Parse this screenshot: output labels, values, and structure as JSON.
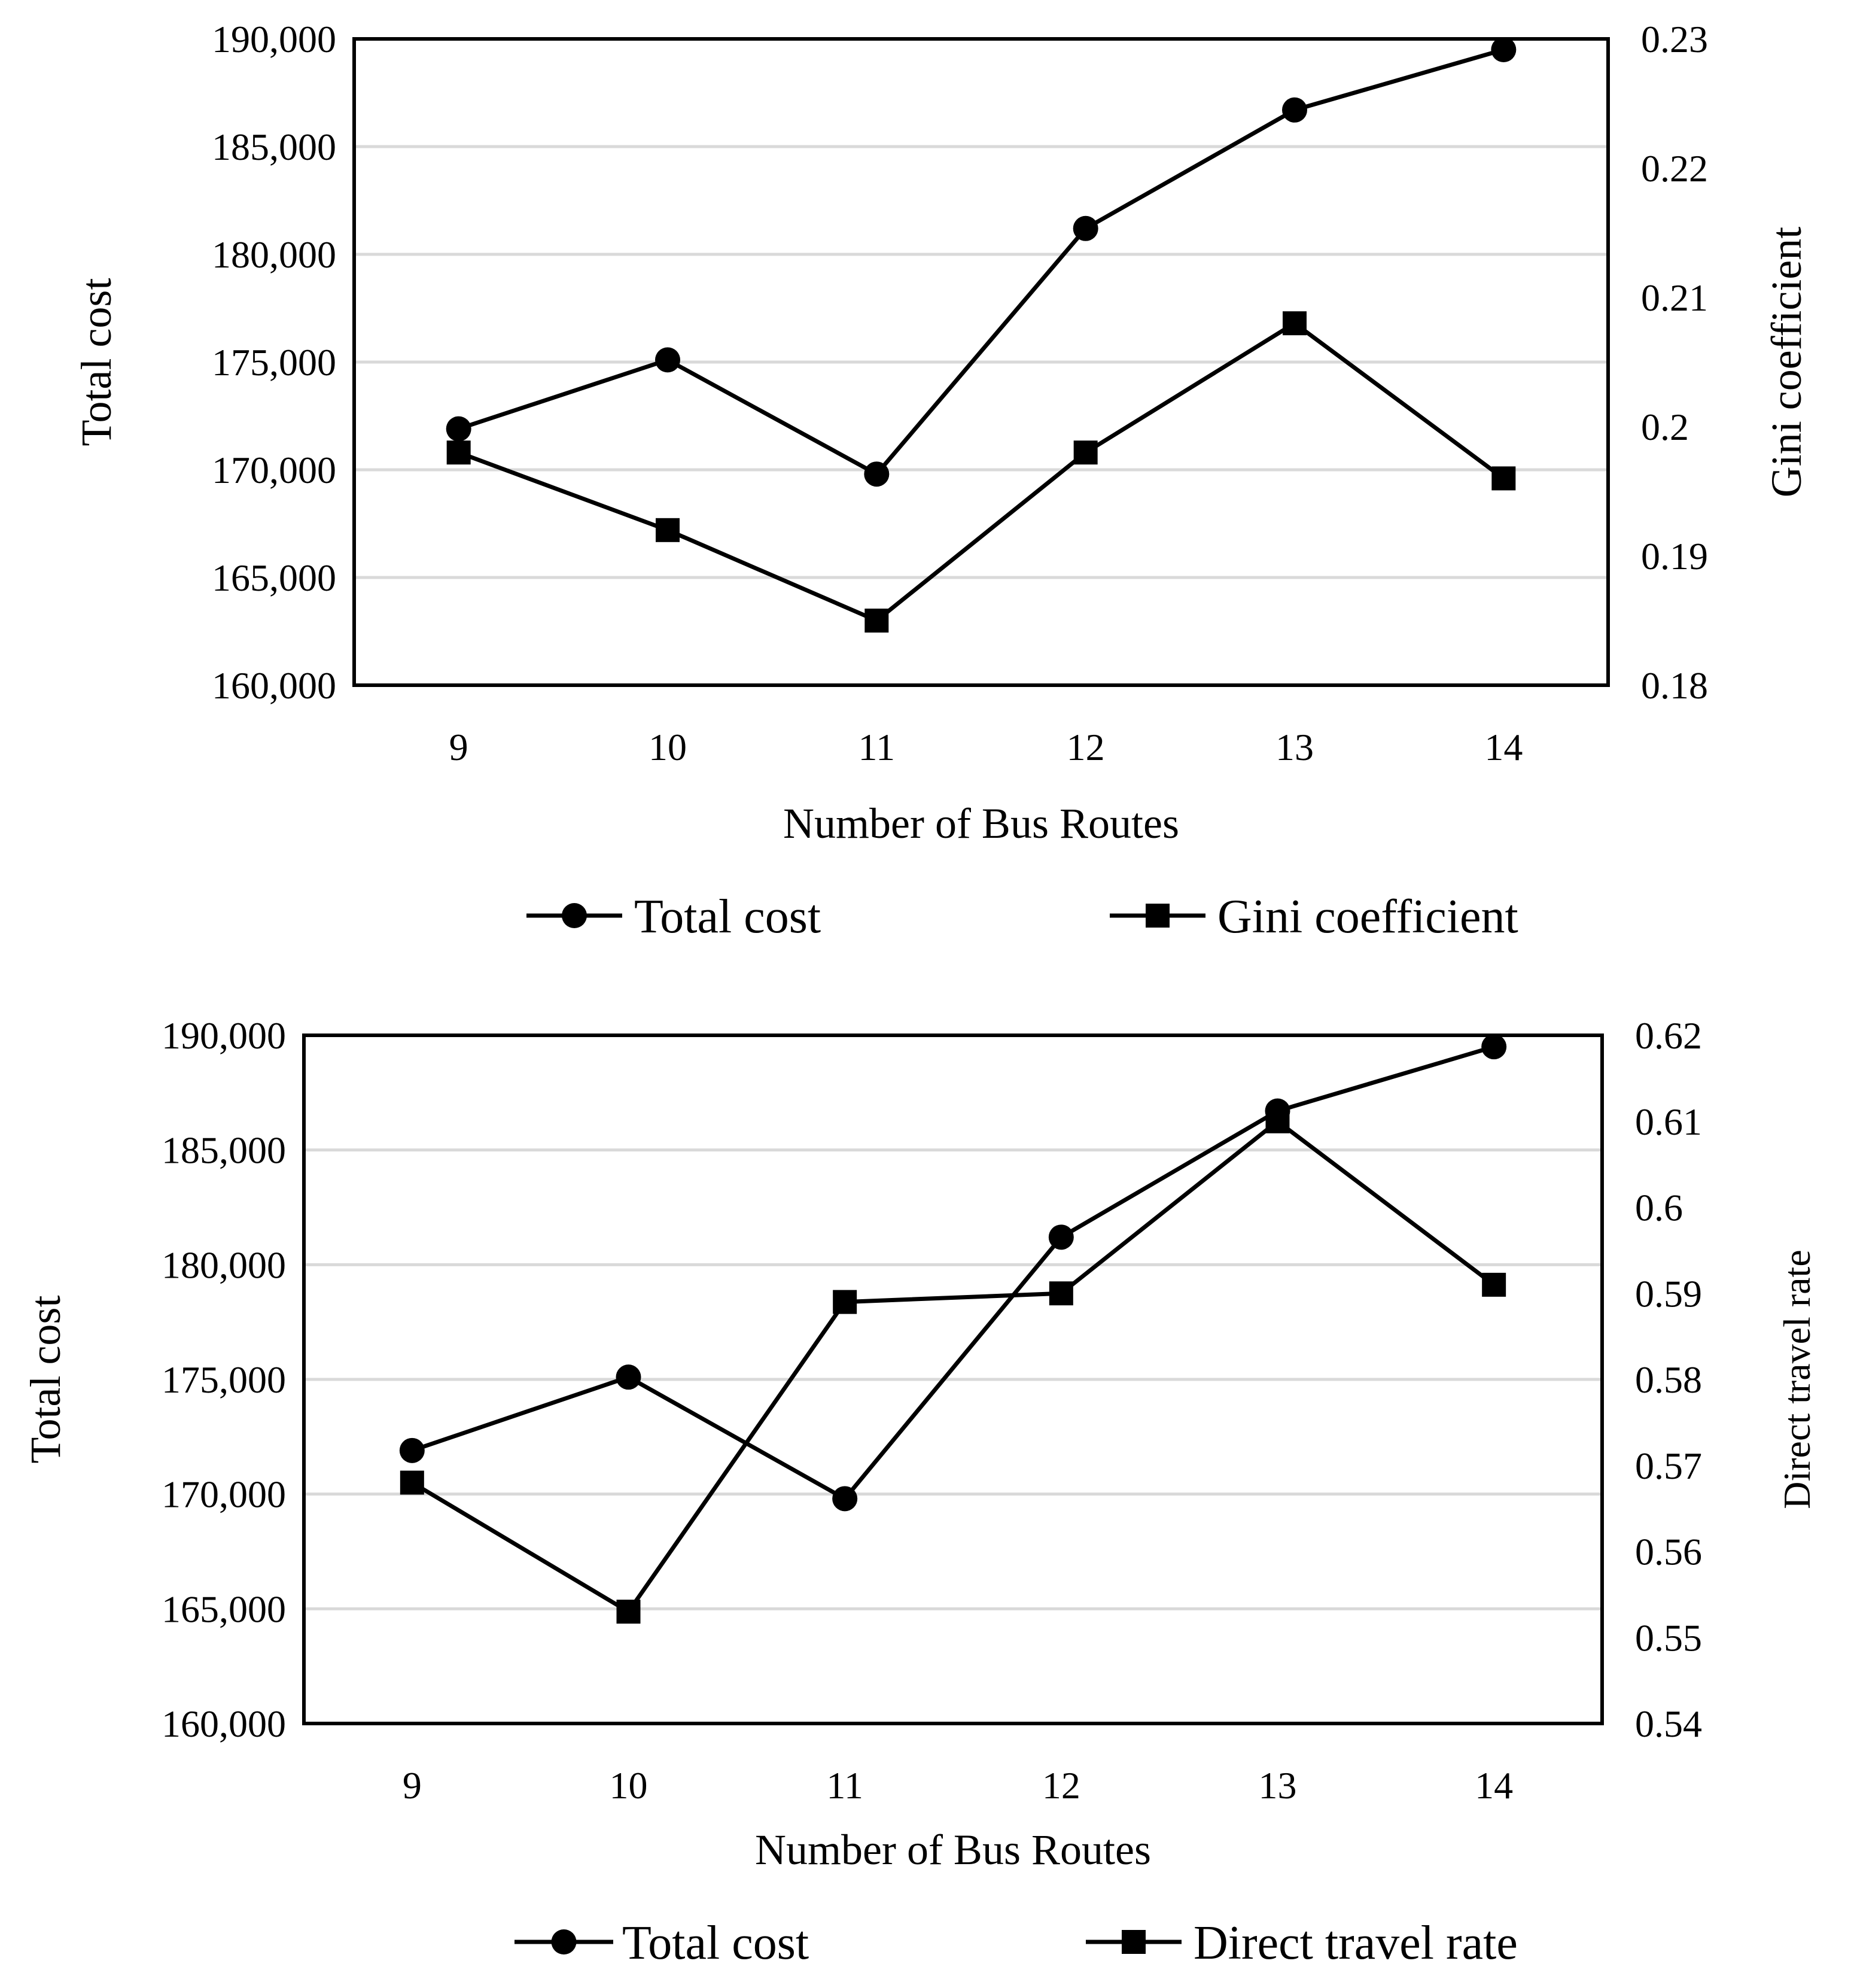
{
  "chart_data": [
    {
      "type": "line",
      "categories": [
        "9",
        "10",
        "11",
        "12",
        "13",
        "14"
      ],
      "xlabel": "Number of Bus Routes",
      "ylabel": "Total cost",
      "y2label": "Gini coefficient",
      "ylim": [
        160000,
        190000
      ],
      "y2lim": [
        0.18,
        0.23
      ],
      "yticks": [
        "160,000",
        "165,000",
        "170,000",
        "175,000",
        "180,000",
        "185,000",
        "190,000"
      ],
      "y2ticks": [
        "0.18",
        "0.19",
        "0.2",
        "0.21",
        "0.22",
        "0.23"
      ],
      "grid": true,
      "legend": "bottom",
      "series": [
        {
          "name": "Total cost",
          "axis": "left",
          "marker": "circle",
          "values": [
            171900,
            175100,
            169800,
            181200,
            186700,
            189500
          ]
        },
        {
          "name": "Gini coefficient",
          "axis": "right",
          "marker": "square",
          "values": [
            0.198,
            0.192,
            0.185,
            0.198,
            0.208,
            0.196
          ]
        }
      ]
    },
    {
      "type": "line",
      "categories": [
        "9",
        "10",
        "11",
        "12",
        "13",
        "14"
      ],
      "xlabel": "Number of Bus Routes",
      "ylabel": "Total cost",
      "y2label": "Direct travel rate",
      "ylim": [
        160000,
        190000
      ],
      "y2lim": [
        0.54,
        0.62
      ],
      "yticks": [
        "160,000",
        "165,000",
        "170,000",
        "175,000",
        "180,000",
        "185,000",
        "190,000"
      ],
      "y2ticks": [
        "0.54",
        "0.55",
        "0.56",
        "0.57",
        "0.58",
        "0.59",
        "0.6",
        "0.61",
        "0.62"
      ],
      "grid": true,
      "legend": "bottom",
      "series": [
        {
          "name": "Total cost",
          "axis": "left",
          "marker": "circle",
          "values": [
            171900,
            175100,
            169800,
            181200,
            186700,
            189500
          ]
        },
        {
          "name": "Direct travel rate",
          "axis": "right",
          "marker": "square",
          "values": [
            0.568,
            0.553,
            0.589,
            0.59,
            0.61,
            0.591
          ]
        }
      ]
    }
  ]
}
